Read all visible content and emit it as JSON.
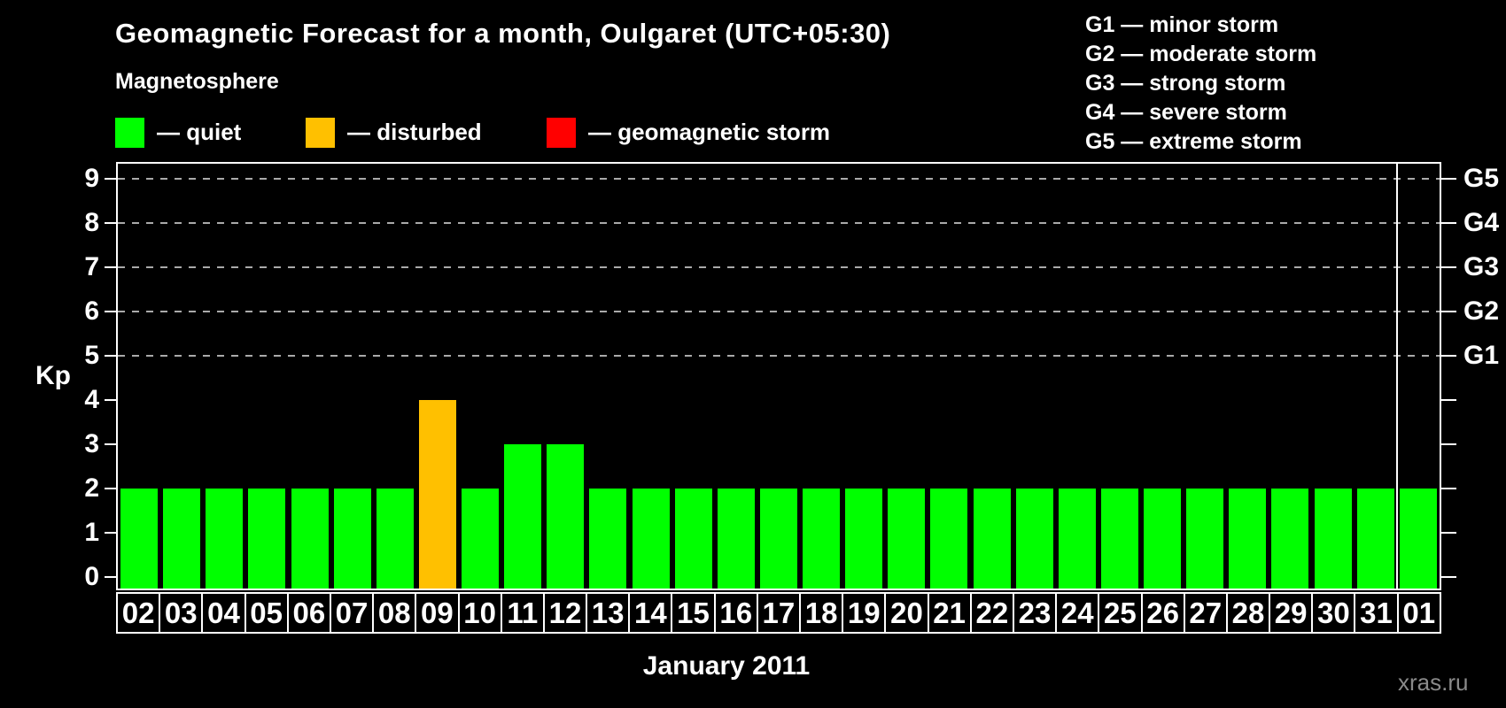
{
  "header": {
    "title": "Geomagnetic Forecast for a month, Oulgaret (UTC+05:30)",
    "subtitle": "Magnetosphere"
  },
  "legend": {
    "items": [
      {
        "key": "quiet",
        "label": "— quiet",
        "color": "#00ff00"
      },
      {
        "key": "disturbed",
        "label": "— disturbed",
        "color": "#ffc000"
      },
      {
        "key": "storm",
        "label": "— geomagnetic storm",
        "color": "#ff0000"
      }
    ]
  },
  "storm_scale": {
    "items": [
      "G1 — minor storm",
      "G2 — moderate storm",
      "G3 — strong storm",
      "G4 — severe storm",
      "G5 — extreme storm"
    ]
  },
  "chart_data": {
    "type": "bar",
    "title": "Geomagnetic Forecast for a month, Oulgaret (UTC+05:30)",
    "xlabel": "January 2011",
    "ylabel": "Kp",
    "ylim": [
      -0.3,
      9.4
    ],
    "yticks": [
      0,
      1,
      2,
      3,
      4,
      5,
      6,
      7,
      8,
      9
    ],
    "gridlines_at": [
      5,
      6,
      7,
      8,
      9
    ],
    "grid_on": true,
    "grid_color": "#aaaaaa",
    "axis_color": "#ffffff",
    "right_axis_labels": [
      {
        "kp": 5,
        "label": "G1"
      },
      {
        "kp": 6,
        "label": "G2"
      },
      {
        "kp": 7,
        "label": "G3"
      },
      {
        "kp": 8,
        "label": "G4"
      },
      {
        "kp": 9,
        "label": "G5"
      }
    ],
    "categories": [
      "02",
      "03",
      "04",
      "05",
      "06",
      "07",
      "08",
      "09",
      "10",
      "11",
      "12",
      "13",
      "14",
      "15",
      "16",
      "17",
      "18",
      "19",
      "20",
      "21",
      "22",
      "23",
      "24",
      "25",
      "26",
      "27",
      "28",
      "29",
      "30",
      "31",
      "01"
    ],
    "values": [
      2,
      2,
      2,
      2,
      2,
      2,
      2,
      4,
      2,
      3,
      3,
      2,
      2,
      2,
      2,
      2,
      2,
      2,
      2,
      2,
      2,
      2,
      2,
      2,
      2,
      2,
      2,
      2,
      2,
      2,
      2
    ],
    "statuses": [
      "quiet",
      "quiet",
      "quiet",
      "quiet",
      "quiet",
      "quiet",
      "quiet",
      "disturbed",
      "quiet",
      "quiet",
      "quiet",
      "quiet",
      "quiet",
      "quiet",
      "quiet",
      "quiet",
      "quiet",
      "quiet",
      "quiet",
      "quiet",
      "quiet",
      "quiet",
      "quiet",
      "quiet",
      "quiet",
      "quiet",
      "quiet",
      "quiet",
      "quiet",
      "quiet",
      "quiet"
    ],
    "palette": {
      "quiet": "#00ff00",
      "disturbed": "#ffc000",
      "storm": "#ff0000"
    },
    "month_separator_before": "01"
  },
  "footer": {
    "watermark": "xras.ru"
  }
}
